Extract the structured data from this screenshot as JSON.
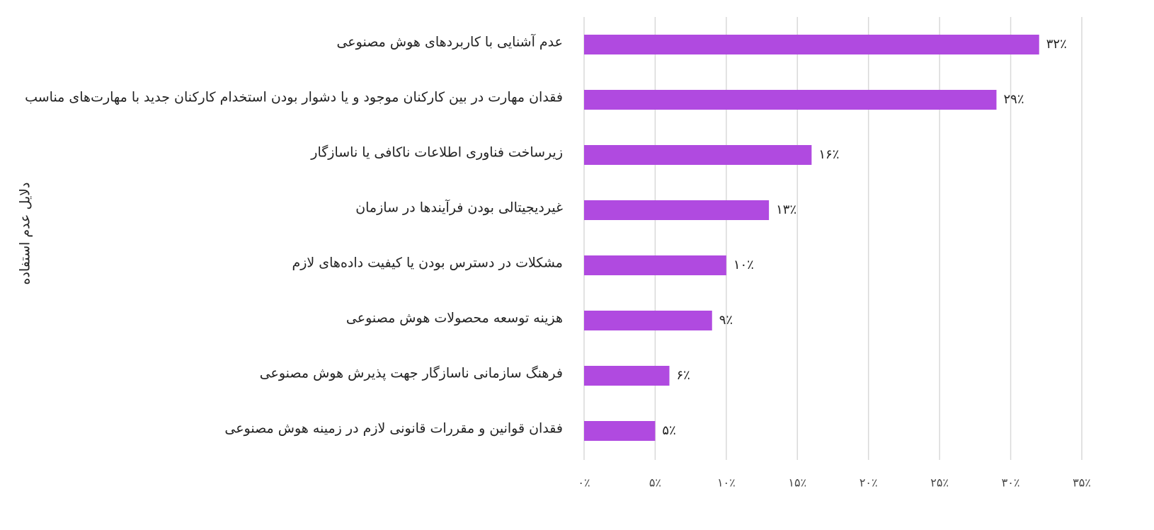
{
  "chart_data": {
    "type": "barh",
    "y_axis_label": "دلایل عدم استفاده",
    "categories": [
      "عدم آشنایی با کاربردهای هوش مصنوعی",
      "فقدان مهارت در بین کارکنان موجود و یا دشوار بودن استخدام کارکنان جدید با مهارت‌های مناسب",
      "زیرساخت فناوری اطلاعات ناکافی یا ناسازگار",
      "غیردیجیتالی بودن فرآیندها در سازمان",
      "مشکلات در دسترس بودن یا کیفیت داده‌های لازم",
      "هزینه توسعه محصولات هوش مصنوعی",
      "فرهنگ سازمانی ناسازگار جهت پذیرش هوش مصنوعی",
      "فقدان قوانین و مقررات قانونی لازم در زمینه هوش مصنوعی"
    ],
    "values": [
      32,
      29,
      16,
      13,
      10,
      9,
      6,
      5
    ],
    "value_labels": [
      "۳۲٪",
      "۲۹٪",
      "۱۶٪",
      "۱۳٪",
      "۱۰٪",
      "۹٪",
      "۶٪",
      "۵٪"
    ],
    "color": "#b04ae0",
    "xlim": [
      0,
      35
    ],
    "xticks": [
      {
        "value": 0,
        "label": "۰٪"
      },
      {
        "value": 5,
        "label": "۵٪"
      },
      {
        "value": 10,
        "label": "۱۰٪"
      },
      {
        "value": 15,
        "label": "۱۵٪"
      },
      {
        "value": 20,
        "label": "۲۰٪"
      },
      {
        "value": 25,
        "label": "۲۵٪"
      },
      {
        "value": 30,
        "label": "۳۰٪"
      },
      {
        "value": 35,
        "label": "۳۵٪"
      }
    ],
    "grid": true
  }
}
